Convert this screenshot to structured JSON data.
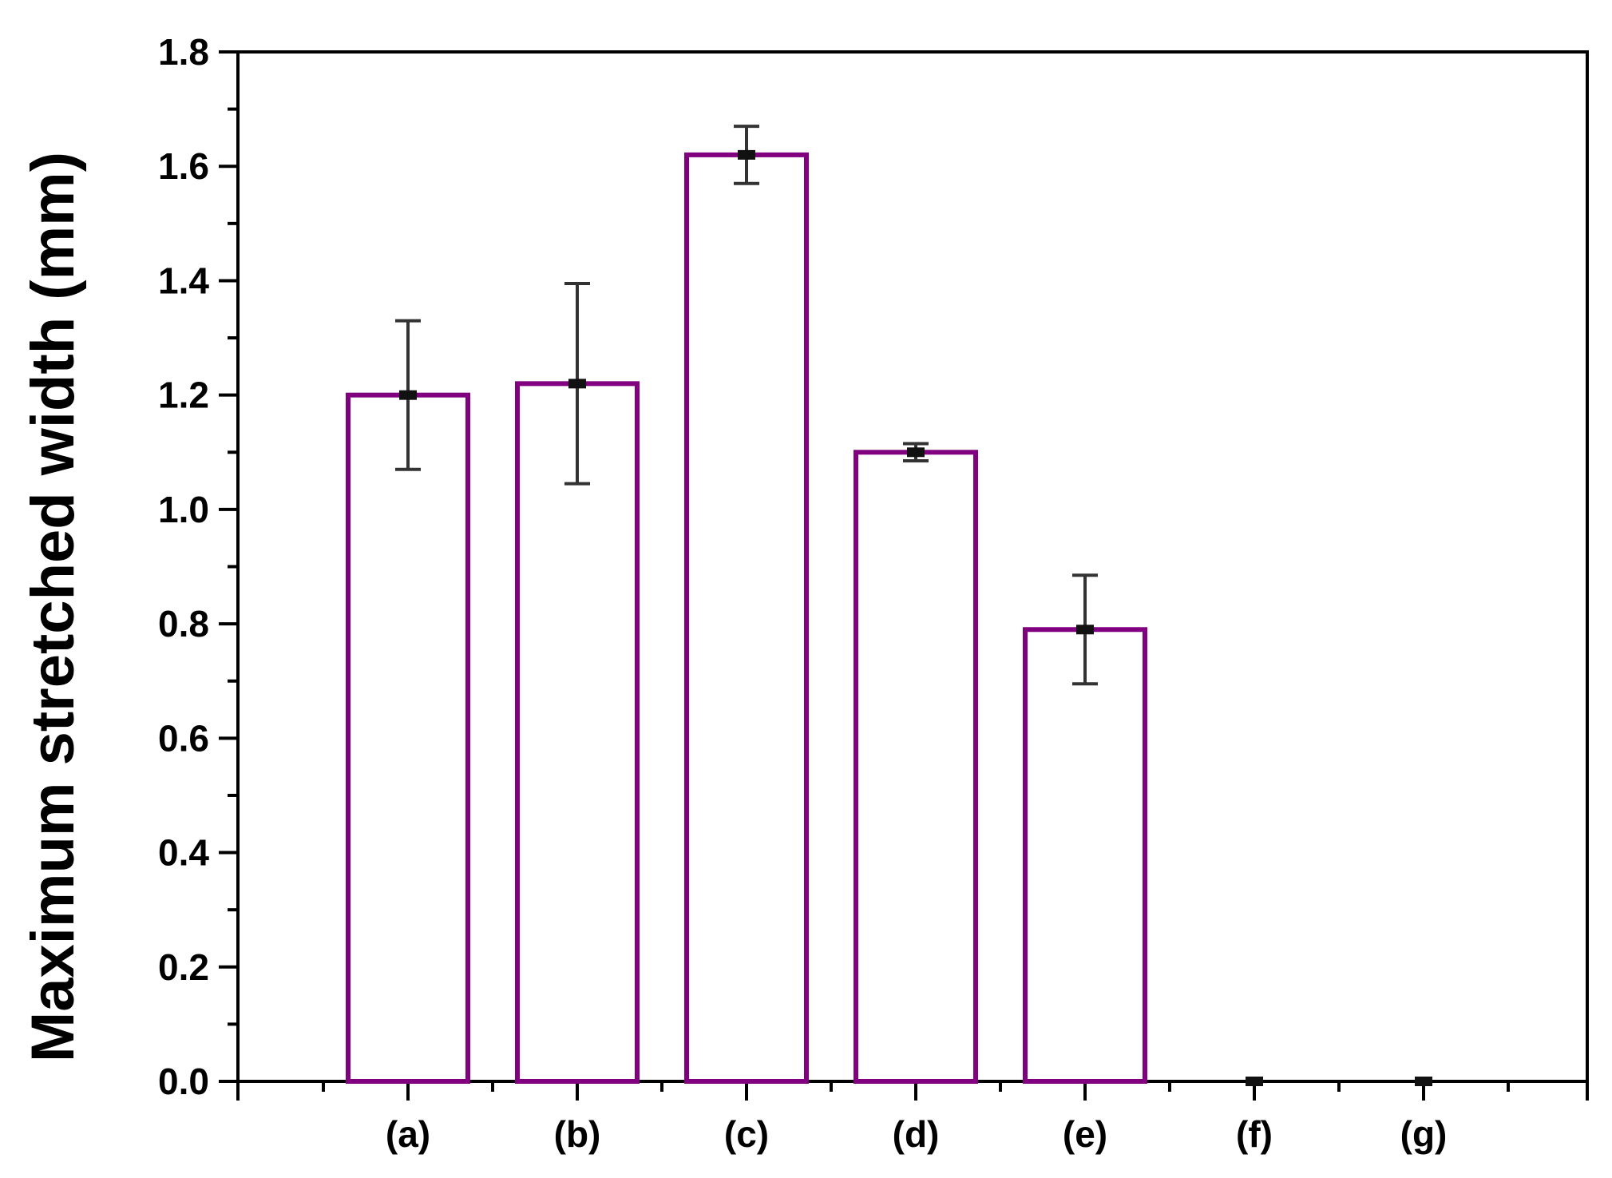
{
  "chart_data": {
    "type": "bar",
    "categories": [
      "(a)",
      "(b)",
      "(c)",
      "(d)",
      "(e)",
      "(f)",
      "(g)"
    ],
    "values": [
      1.2,
      1.22,
      1.62,
      1.1,
      0.79,
      0.0,
      0.0
    ],
    "error_bars": [
      0.13,
      0.175,
      0.05,
      0.015,
      0.095,
      0.0,
      0.0
    ],
    "title": "",
    "xlabel": "",
    "ylabel": "Maximum stretched width (mm)",
    "ylim": [
      0,
      1.8
    ],
    "yticks": [
      "0.0",
      "0.2",
      "0.4",
      "0.6",
      "0.8",
      "1.0",
      "1.2",
      "1.4",
      "1.6",
      "1.8"
    ],
    "grid": false,
    "legend": "none",
    "bar_fill": "#ffffff",
    "bar_edge_color": "#800080",
    "error_bar_color": "#333333"
  }
}
